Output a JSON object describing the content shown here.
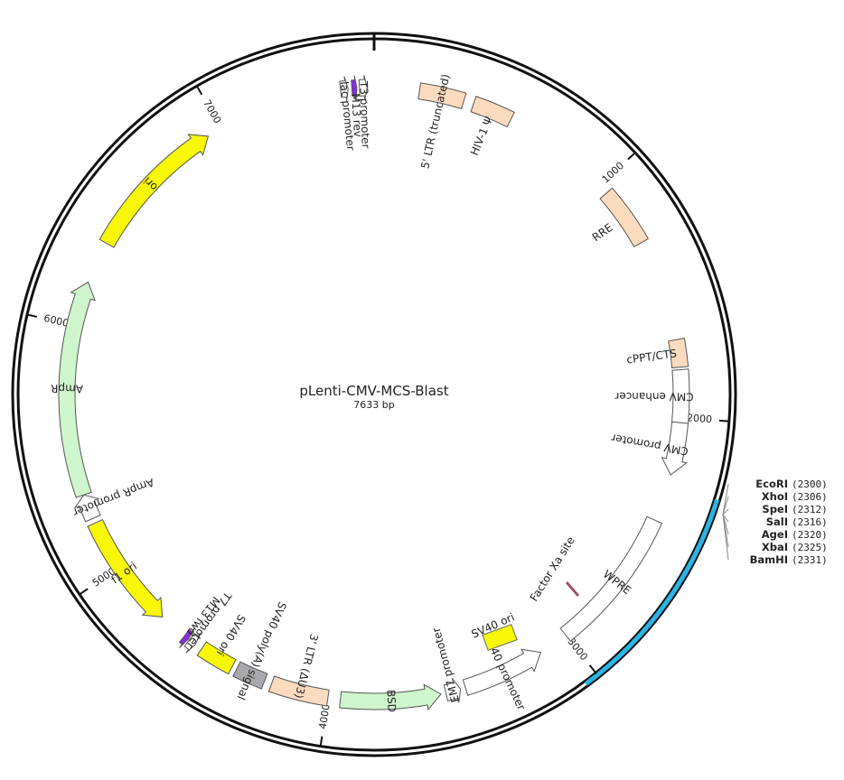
{
  "plasmid": {
    "name": "pLenti-CMV-MCS-Blast",
    "length_label": "7633 bp",
    "length": 7633
  },
  "ticks": [
    {
      "value": 1000,
      "label": "1000"
    },
    {
      "value": 2000,
      "label": "2000"
    },
    {
      "value": 3000,
      "label": "3000"
    },
    {
      "value": 4000,
      "label": "4000"
    },
    {
      "value": 5000,
      "label": "5000"
    },
    {
      "value": 6000,
      "label": "6000"
    },
    {
      "value": 7000,
      "label": "7000"
    }
  ],
  "colors": {
    "backbone": "#111111",
    "mcs_highlight": "#29b6e6",
    "ltr": "#fbdbbf",
    "ori": "#f7f707",
    "ampr": "#cff5cc",
    "bsd": "#cff5cc",
    "gray": "#a9a9ad",
    "white": "#ffffff",
    "primer": "#8a2be2",
    "factor_xa": "#d9a3b0"
  },
  "features": [
    {
      "id": "5-ltr",
      "label": "5' LTR (truncated)",
      "start": 180,
      "end": 360,
      "style": "box",
      "color": "ltr"
    },
    {
      "id": "hiv-psi",
      "label": "HIV-1 Ψ",
      "start": 400,
      "end": 560,
      "style": "box",
      "color": "ltr"
    },
    {
      "id": "rre",
      "label": "RRE",
      "start": 1040,
      "end": 1280,
      "style": "box",
      "color": "ltr"
    },
    {
      "id": "cppt",
      "label": "cPPT/CTS",
      "start": 1690,
      "end": 1800,
      "style": "box",
      "color": "ltr"
    },
    {
      "id": "cmv-enhancer",
      "label": "CMV enhancer",
      "start": 1810,
      "end": 2020,
      "style": "box",
      "color": "white"
    },
    {
      "id": "cmv-promoter",
      "label": "CMV promoter",
      "start": 2020,
      "end": 2230,
      "style": "arrow-cw",
      "color": "white"
    },
    {
      "id": "wpre",
      "label": "WPRE",
      "start": 2420,
      "end": 3000,
      "style": "box",
      "color": "white"
    },
    {
      "id": "sv40-promoter",
      "label": "SV40 promoter",
      "start": 3120,
      "end": 3450,
      "style": "arrow-ccw",
      "color": "white"
    },
    {
      "id": "em7-promoter",
      "label": "EM7 promoter",
      "start": 3470,
      "end": 3530,
      "style": "arrow-ccw",
      "color": "white"
    },
    {
      "id": "bsd",
      "label": "BSD",
      "start": 3550,
      "end": 3950,
      "style": "arrow-ccw",
      "color": "bsd"
    },
    {
      "id": "3-ltr",
      "label": "3' LTR (ΔU3)",
      "start": 4000,
      "end": 4230,
      "style": "box",
      "color": "ltr"
    },
    {
      "id": "sv40-polya",
      "label": "SV40 poly(A) signal",
      "start": 4260,
      "end": 4380,
      "style": "box",
      "color": "gray"
    },
    {
      "id": "sv40-ori-outer",
      "label": "SV40 ori",
      "start": 4400,
      "end": 4540,
      "style": "box",
      "color": "ori"
    },
    {
      "id": "t7-promoter",
      "label": "T7 promoter",
      "start": 4570,
      "end": 4600,
      "style": "arrow-ccw",
      "color": "white"
    },
    {
      "id": "m13-fwd",
      "label": "M13 fwd",
      "start": 4605,
      "end": 4625,
      "style": "arrow-ccw",
      "color": "primer"
    },
    {
      "id": "f1-ori",
      "label": "f1 ori",
      "start": 4740,
      "end": 5200,
      "style": "arrow-ccw",
      "color": "ori"
    },
    {
      "id": "ampr-promoter",
      "label": "AmpR promoter",
      "start": 5220,
      "end": 5320,
      "style": "arrow-cw",
      "color": "white"
    },
    {
      "id": "ampr",
      "label": "AmpR",
      "start": 5320,
      "end": 6180,
      "style": "arrow-cw",
      "color": "ampr"
    },
    {
      "id": "ori",
      "label": "ori",
      "start": 6350,
      "end": 6940,
      "style": "arrow-cw",
      "color": "ori"
    },
    {
      "id": "lac-promoter",
      "label": "lac promoter",
      "start": 7500,
      "end": 7530,
      "style": "arrow-cw",
      "color": "white"
    },
    {
      "id": "m13-rev",
      "label": "M13 rev",
      "start": 7545,
      "end": 7565,
      "style": "arrow-cw",
      "color": "primer"
    },
    {
      "id": "t3-promoter",
      "label": "T3 promoter",
      "start": 7575,
      "end": 7605,
      "style": "arrow-cw",
      "color": "white"
    }
  ],
  "inner_features": [
    {
      "id": "sv40-ori-inner",
      "label": "SV40 ori",
      "color": "ori"
    },
    {
      "id": "factor-xa",
      "label": "Factor Xa site",
      "color": "factor_xa"
    }
  ],
  "mcs_region": {
    "start": 2270,
    "end": 3050
  },
  "restriction_sites": [
    {
      "name": "EcoRI",
      "pos": "(2300)"
    },
    {
      "name": "XhoI",
      "pos": "(2306)"
    },
    {
      "name": "SpeI",
      "pos": "(2312)"
    },
    {
      "name": "SalI",
      "pos": "(2316)"
    },
    {
      "name": "AgeI",
      "pos": "(2320)"
    },
    {
      "name": "XbaI",
      "pos": "(2325)"
    },
    {
      "name": "BamHI",
      "pos": "(2331)"
    }
  ]
}
